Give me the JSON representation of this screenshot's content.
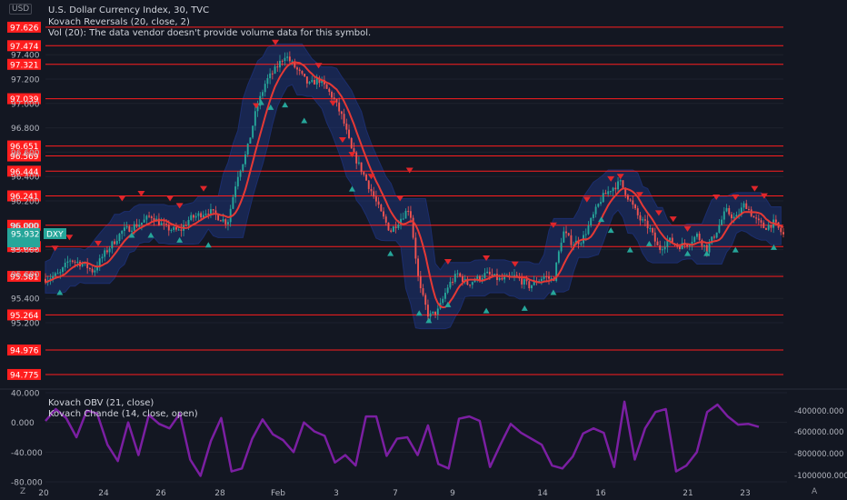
{
  "header": {
    "currency": "USD",
    "title": "U.S. Dollar Currency Index, 30, TVC",
    "indicator_1": "Kovach Reversals (20, close, 2)",
    "indicator_2": "Vol (20): The data vendor doesn't provide volume data for this symbol."
  },
  "lower_pane": {
    "legend_1": "Kovach OBV (21, close)",
    "legend_2": "Kovach Chande (14, close, open)"
  },
  "footer": {
    "left_button": "Z",
    "right_button": "A"
  },
  "colors": {
    "background": "#131722",
    "candle_up": "#26a69a",
    "candle_down": "#ef5350",
    "band": "#1e3a8a",
    "ma_line": "#e53935",
    "level_line": "#ff1e1e",
    "oscillator": "#7b1fa2",
    "marker_up": "#26a69a",
    "marker_down": "#e0262b"
  },
  "chart_data": [
    {
      "type": "candlestick",
      "symbol": "DXY",
      "title": "U.S. Dollar Currency Index, 30, TVC",
      "ylim": [
        94.7,
        97.7
      ],
      "y_ticks": [
        95.2,
        95.4,
        95.6,
        95.8,
        96.0,
        96.2,
        96.4,
        96.6,
        96.8,
        97.0,
        97.2,
        97.4
      ],
      "y_tick_labels": [
        "95.200",
        "95.400",
        "95.600",
        "95.800",
        "96.000",
        "96.200",
        "96.400",
        "96.600",
        "96.800",
        "97.000",
        "97.200",
        "97.400"
      ],
      "x_tick_labels": [
        "20",
        "24",
        "26",
        "28",
        "Feb",
        "3",
        "7",
        "9",
        "14",
        "16",
        "21",
        "23"
      ],
      "levels": [
        97.626,
        97.474,
        97.321,
        97.039,
        96.651,
        96.569,
        96.444,
        96.241,
        96.0,
        95.825,
        95.581,
        95.264,
        94.976,
        94.775
      ],
      "level_labels": [
        "97.626",
        "97.474",
        "97.321",
        "97.039",
        "96.651",
        "96.569",
        "96.444",
        "96.241",
        "96.000",
        "95.825",
        "95.581",
        "95.264",
        "94.976",
        "94.775"
      ],
      "price_path": [
        [
          0,
          95.56
        ],
        [
          3,
          95.6
        ],
        [
          5,
          95.72
        ],
        [
          8,
          95.68
        ],
        [
          10,
          95.62
        ],
        [
          12,
          95.75
        ],
        [
          16,
          95.95
        ],
        [
          20,
          96.02
        ],
        [
          22,
          96.08
        ],
        [
          25,
          95.98
        ],
        [
          28,
          95.95
        ],
        [
          30,
          96.05
        ],
        [
          34,
          96.12
        ],
        [
          38,
          96.02
        ],
        [
          40,
          96.4
        ],
        [
          42,
          96.6
        ],
        [
          44,
          96.95
        ],
        [
          46,
          97.18
        ],
        [
          48,
          97.28
        ],
        [
          50,
          97.4
        ],
        [
          52,
          97.3
        ],
        [
          55,
          97.15
        ],
        [
          57,
          97.2
        ],
        [
          60,
          97.05
        ],
        [
          62,
          96.88
        ],
        [
          64,
          96.6
        ],
        [
          66,
          96.45
        ],
        [
          68,
          96.28
        ],
        [
          70,
          96.1
        ],
        [
          72,
          95.95
        ],
        [
          74,
          96.05
        ],
        [
          76,
          96.15
        ],
        [
          78,
          95.5
        ],
        [
          80,
          95.25
        ],
        [
          82,
          95.3
        ],
        [
          84,
          95.5
        ],
        [
          86,
          95.6
        ],
        [
          88,
          95.52
        ],
        [
          92,
          95.6
        ],
        [
          95,
          95.55
        ],
        [
          98,
          95.58
        ],
        [
          101,
          95.5
        ],
        [
          104,
          95.58
        ],
        [
          106,
          95.55
        ],
        [
          108,
          95.95
        ],
        [
          110,
          95.85
        ],
        [
          112,
          95.88
        ],
        [
          114,
          96.05
        ],
        [
          116,
          96.22
        ],
        [
          118,
          96.3
        ],
        [
          120,
          96.35
        ],
        [
          122,
          96.2
        ],
        [
          124,
          96.05
        ],
        [
          126,
          95.98
        ],
        [
          128,
          95.8
        ],
        [
          130,
          95.88
        ],
        [
          132,
          95.83
        ],
        [
          134,
          95.85
        ],
        [
          136,
          95.92
        ],
        [
          138,
          95.8
        ],
        [
          140,
          95.95
        ],
        [
          142,
          96.12
        ],
        [
          144,
          96.05
        ],
        [
          146,
          96.18
        ],
        [
          148,
          96.05
        ],
        [
          150,
          95.98
        ],
        [
          152,
          96.02
        ],
        [
          154,
          95.92
        ]
      ],
      "signals": {
        "down": [
          [
            2,
            95.81
          ],
          [
            5,
            95.9
          ],
          [
            11,
            95.85
          ],
          [
            16,
            96.22
          ],
          [
            20,
            96.26
          ],
          [
            26,
            96.22
          ],
          [
            28,
            96.16
          ],
          [
            33,
            96.3
          ],
          [
            44,
            96.98
          ],
          [
            48,
            97.5
          ],
          [
            57,
            97.31
          ],
          [
            60,
            97.0
          ],
          [
            62,
            96.7
          ],
          [
            64,
            96.58
          ],
          [
            68,
            96.4
          ],
          [
            74,
            96.22
          ],
          [
            76,
            96.45
          ],
          [
            84,
            95.7
          ],
          [
            92,
            95.73
          ],
          [
            98,
            95.68
          ],
          [
            106,
            96.0
          ],
          [
            113,
            96.21
          ],
          [
            118,
            96.38
          ],
          [
            120,
            96.4
          ],
          [
            124,
            96.25
          ],
          [
            128,
            96.1
          ],
          [
            131,
            96.05
          ],
          [
            134,
            95.97
          ],
          [
            140,
            96.23
          ],
          [
            144,
            96.23
          ],
          [
            148,
            96.3
          ],
          [
            150,
            96.24
          ]
        ],
        "up": [
          [
            3,
            95.45
          ],
          [
            18,
            95.92
          ],
          [
            22,
            95.92
          ],
          [
            28,
            95.88
          ],
          [
            34,
            95.84
          ],
          [
            45,
            97.01
          ],
          [
            47,
            96.97
          ],
          [
            50,
            96.99
          ],
          [
            54,
            96.86
          ],
          [
            64,
            96.3
          ],
          [
            72,
            95.77
          ],
          [
            78,
            95.28
          ],
          [
            80,
            95.22
          ],
          [
            84,
            95.35
          ],
          [
            92,
            95.3
          ],
          [
            100,
            95.32
          ],
          [
            106,
            95.45
          ],
          [
            116,
            96.05
          ],
          [
            118,
            95.96
          ],
          [
            122,
            95.8
          ],
          [
            126,
            95.85
          ],
          [
            134,
            95.77
          ],
          [
            138,
            95.77
          ],
          [
            144,
            95.8
          ],
          [
            152,
            95.82
          ]
        ]
      }
    },
    {
      "type": "line",
      "title": "Kovach OBV (21, close) / Kovach Chande (14, close, open)",
      "ylim": [
        -80000,
        40000
      ],
      "y_ticks": [
        40000,
        0,
        -40000,
        -80000
      ],
      "y_tick_labels": [
        "40.000",
        "0.000",
        "-40.000",
        "-80.000"
      ],
      "right_tick_labels": [
        "-400000.000",
        "-600000.000",
        "-800000.000",
        "-1000000.000"
      ],
      "values": [
        2,
        18,
        6,
        -20,
        16,
        12,
        -30,
        -52,
        0,
        -44,
        10,
        -2,
        -8,
        12,
        -50,
        -72,
        -25,
        6,
        -66,
        -62,
        -22,
        4,
        -16,
        -24,
        -40,
        0,
        -12,
        -18,
        -54,
        -44,
        -58,
        8,
        8,
        -45,
        -22,
        -20,
        -44,
        -4,
        -56,
        -62,
        5,
        8,
        2,
        -60,
        -30,
        -2,
        -14,
        -22,
        -30,
        -58,
        -62,
        -46,
        -15,
        -8,
        -14,
        -60,
        28,
        -50,
        -8,
        14,
        18,
        -66,
        -58,
        -40,
        14,
        24,
        8,
        -3,
        -2,
        -6
      ]
    }
  ]
}
